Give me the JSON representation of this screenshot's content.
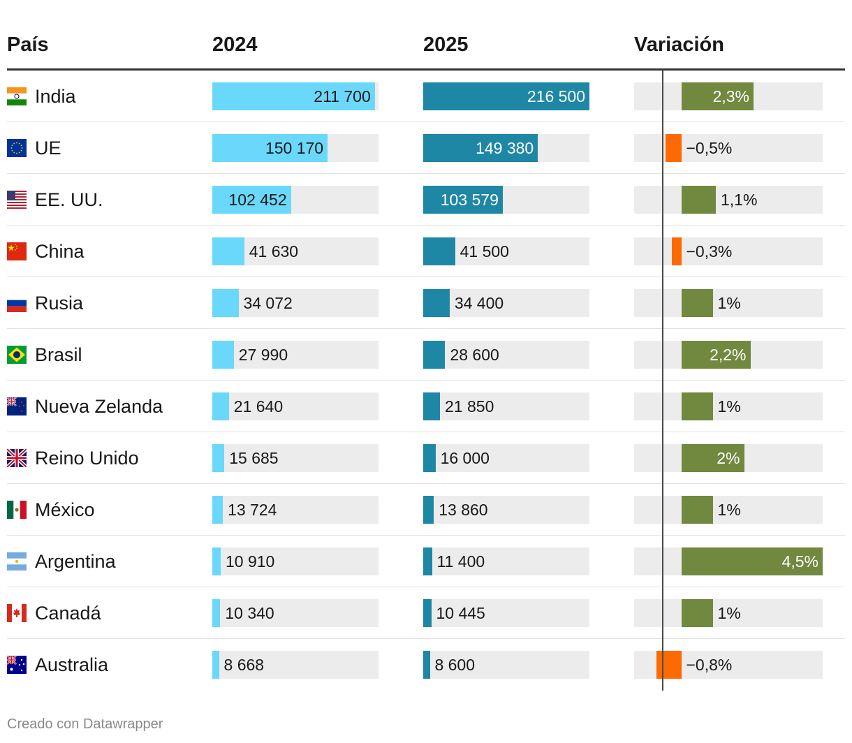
{
  "headers": {
    "country": "País",
    "y2024": "2024",
    "y2025": "2025",
    "variation": "Variación"
  },
  "footer": "Creado con Datawrapper",
  "colors": {
    "bar2024": "#6ad8fa",
    "bar2025": "#1e87a5",
    "positive": "#71893f",
    "negative": "#fe6a02",
    "track": "#ececec"
  },
  "chart_data": {
    "type": "table",
    "title": "",
    "columns": [
      "País",
      "2024",
      "2025",
      "Variación"
    ],
    "max_value": 216500,
    "variation_range": [
      -1.5,
      4.5
    ],
    "rows": [
      {
        "country": "India",
        "flag": "india-flag-icon",
        "v2024": 211700,
        "v2024_label": "211 700",
        "v2025": 216500,
        "v2025_label": "216 500",
        "var": 2.3,
        "var_label": "2,3%"
      },
      {
        "country": "UE",
        "flag": "eu-flag-icon",
        "v2024": 150170,
        "v2024_label": "150 170",
        "v2025": 149380,
        "v2025_label": "149 380",
        "var": -0.5,
        "var_label": "−0,5%"
      },
      {
        "country": "EE. UU.",
        "flag": "usa-flag-icon",
        "v2024": 102452,
        "v2024_label": "102 452",
        "v2025": 103579,
        "v2025_label": "103 579",
        "var": 1.1,
        "var_label": "1,1%"
      },
      {
        "country": "China",
        "flag": "china-flag-icon",
        "v2024": 41630,
        "v2024_label": "41 630",
        "v2025": 41500,
        "v2025_label": "41 500",
        "var": -0.3,
        "var_label": "−0,3%"
      },
      {
        "country": "Rusia",
        "flag": "russia-flag-icon",
        "v2024": 34072,
        "v2024_label": "34 072",
        "v2025": 34400,
        "v2025_label": "34 400",
        "var": 1.0,
        "var_label": "1%"
      },
      {
        "country": "Brasil",
        "flag": "brazil-flag-icon",
        "v2024": 27990,
        "v2024_label": "27 990",
        "v2025": 28600,
        "v2025_label": "28 600",
        "var": 2.2,
        "var_label": "2,2%"
      },
      {
        "country": "Nueva Zelanda",
        "flag": "new-zealand-flag-icon",
        "v2024": 21640,
        "v2024_label": "21 640",
        "v2025": 21850,
        "v2025_label": "21 850",
        "var": 1.0,
        "var_label": "1%"
      },
      {
        "country": "Reino Unido",
        "flag": "uk-flag-icon",
        "v2024": 15685,
        "v2024_label": "15 685",
        "v2025": 16000,
        "v2025_label": "16 000",
        "var": 2.0,
        "var_label": "2%"
      },
      {
        "country": "México",
        "flag": "mexico-flag-icon",
        "v2024": 13724,
        "v2024_label": "13 724",
        "v2025": 13860,
        "v2025_label": "13 860",
        "var": 1.0,
        "var_label": "1%"
      },
      {
        "country": "Argentina",
        "flag": "argentina-flag-icon",
        "v2024": 10910,
        "v2024_label": "10 910",
        "v2025": 11400,
        "v2025_label": "11 400",
        "var": 4.5,
        "var_label": "4,5%"
      },
      {
        "country": "Canadá",
        "flag": "canada-flag-icon",
        "v2024": 10340,
        "v2024_label": "10 340",
        "v2025": 10445,
        "v2025_label": "10 445",
        "var": 1.0,
        "var_label": "1%"
      },
      {
        "country": "Australia",
        "flag": "australia-flag-icon",
        "v2024": 8668,
        "v2024_label": "8 668",
        "v2025": 8600,
        "v2025_label": "8 600",
        "var": -0.8,
        "var_label": "−0,8%"
      }
    ]
  }
}
